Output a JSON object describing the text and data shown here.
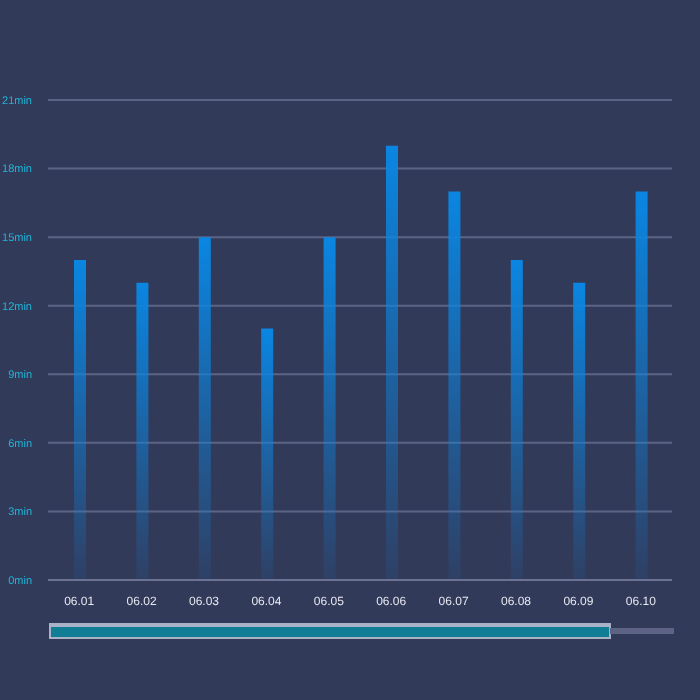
{
  "chart_data": {
    "type": "bar",
    "categories": [
      "06.01",
      "06.02",
      "06.03",
      "06.04",
      "06.05",
      "06.06",
      "06.07",
      "06.08",
      "06.09",
      "06.10"
    ],
    "values": [
      14,
      13,
      15,
      11,
      15,
      19,
      17,
      14,
      13,
      17
    ],
    "color": "#0a86e2",
    "ylim": [
      0,
      21
    ],
    "yticks": [
      {
        "value": 0,
        "label": "0min"
      },
      {
        "value": 3,
        "label": "3min"
      },
      {
        "value": 6,
        "label": "6min"
      },
      {
        "value": 9,
        "label": "9min"
      },
      {
        "value": 12,
        "label": "12min"
      },
      {
        "value": 15,
        "label": "15min"
      },
      {
        "value": 18,
        "label": "18min"
      },
      {
        "value": 21,
        "label": "21min"
      }
    ],
    "grid": "y"
  }
}
